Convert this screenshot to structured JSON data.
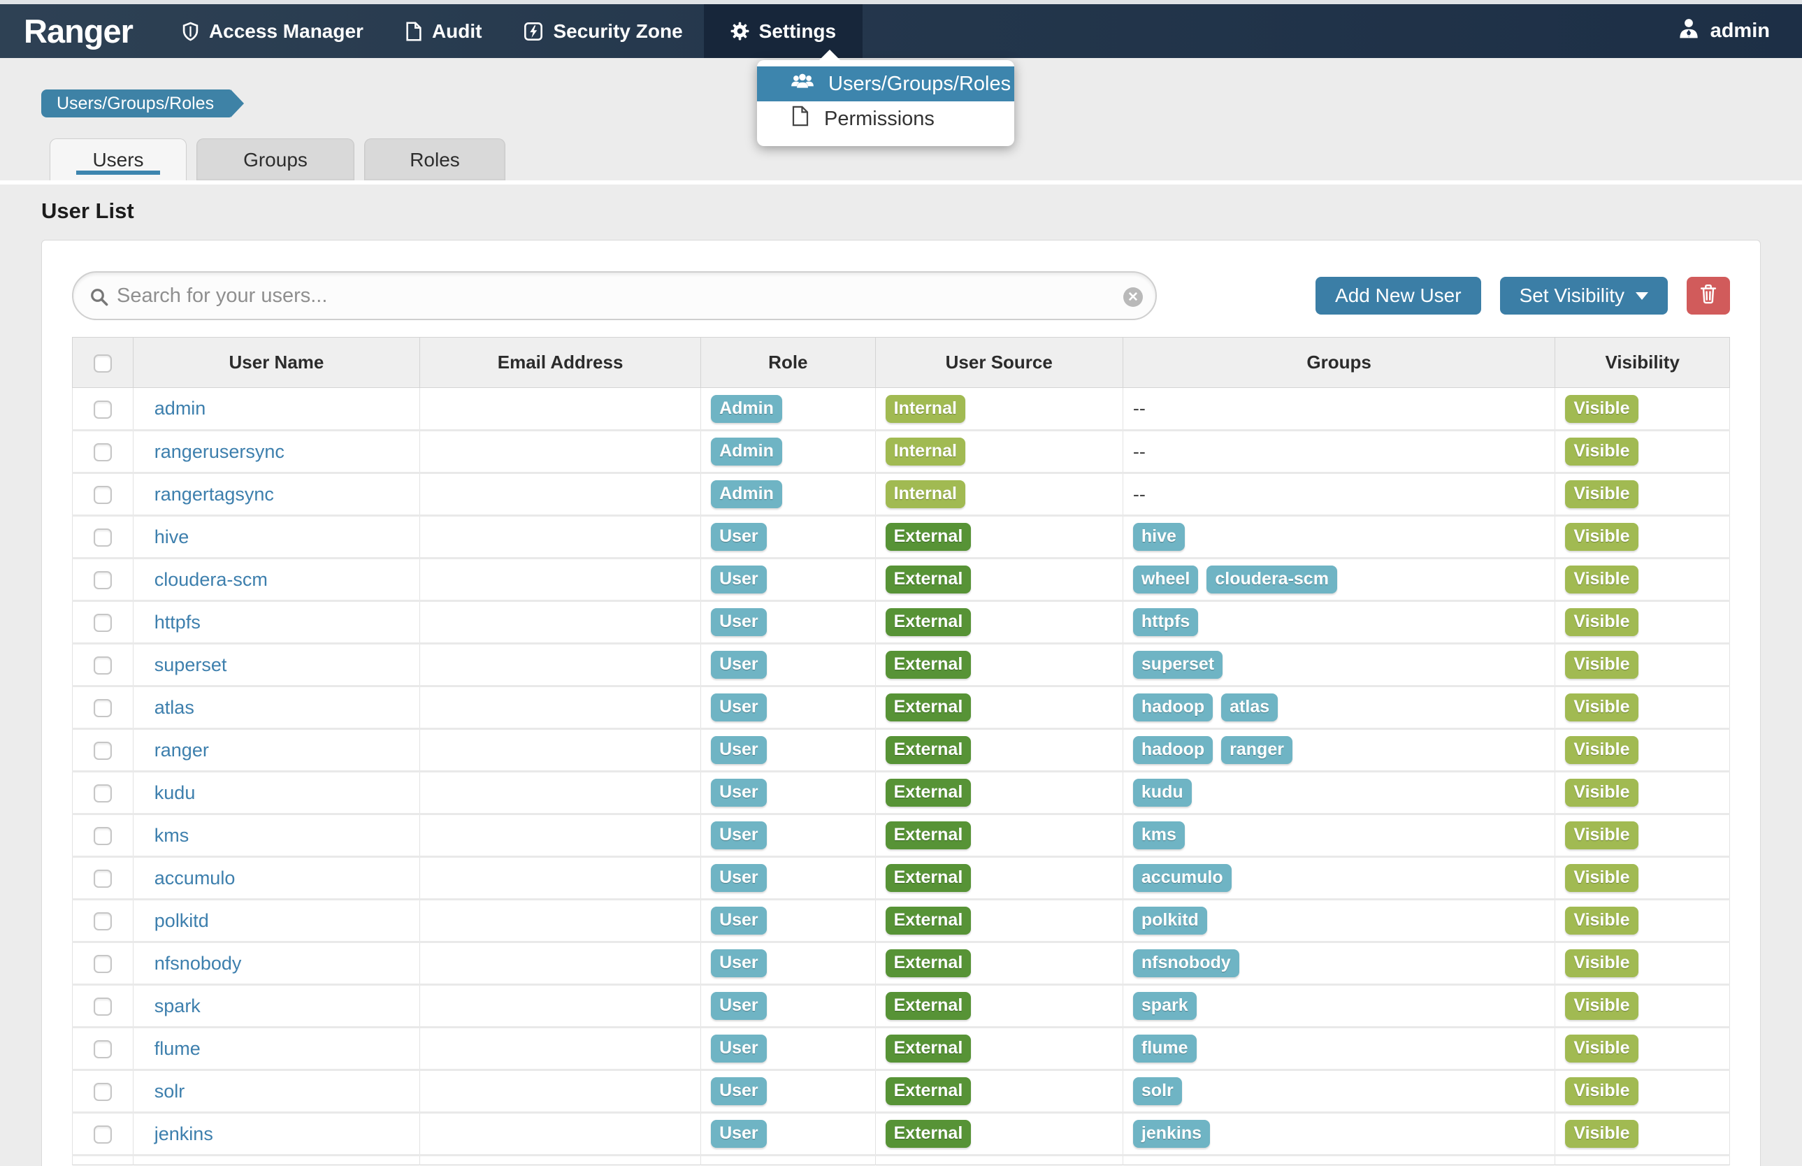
{
  "navbar": {
    "brand": "Ranger",
    "items": [
      {
        "label": "Access Manager",
        "icon": "shield-icon"
      },
      {
        "label": "Audit",
        "icon": "file-icon"
      },
      {
        "label": "Security Zone",
        "icon": "bolt-icon"
      },
      {
        "label": "Settings",
        "icon": "gear-icon"
      }
    ],
    "user": "admin"
  },
  "settings_dropdown": {
    "items": [
      {
        "label": "Users/Groups/Roles",
        "icon": "users-icon",
        "selected": true
      },
      {
        "label": "Permissions",
        "icon": "file-icon",
        "selected": false
      }
    ]
  },
  "breadcrumb": "Users/Groups/Roles",
  "tabs": [
    {
      "label": "Users",
      "active": true
    },
    {
      "label": "Groups",
      "active": false
    },
    {
      "label": "Roles",
      "active": false
    }
  ],
  "page_title": "User List",
  "toolbar": {
    "search_placeholder": "Search for your users...",
    "add_button": "Add New User",
    "visibility_button": "Set Visibility"
  },
  "table": {
    "headers": [
      "User Name",
      "Email Address",
      "Role",
      "User Source",
      "Groups",
      "Visibility"
    ],
    "empty_groups": "--",
    "rows": [
      {
        "user": "admin",
        "email": "",
        "role": "Admin",
        "source": "Internal",
        "groups": [],
        "visibility": "Visible"
      },
      {
        "user": "rangerusersync",
        "email": "",
        "role": "Admin",
        "source": "Internal",
        "groups": [],
        "visibility": "Visible"
      },
      {
        "user": "rangertagsync",
        "email": "",
        "role": "Admin",
        "source": "Internal",
        "groups": [],
        "visibility": "Visible"
      },
      {
        "user": "hive",
        "email": "",
        "role": "User",
        "source": "External",
        "groups": [
          "hive"
        ],
        "visibility": "Visible"
      },
      {
        "user": "cloudera-scm",
        "email": "",
        "role": "User",
        "source": "External",
        "groups": [
          "wheel",
          "cloudera-scm"
        ],
        "visibility": "Visible"
      },
      {
        "user": "httpfs",
        "email": "",
        "role": "User",
        "source": "External",
        "groups": [
          "httpfs"
        ],
        "visibility": "Visible"
      },
      {
        "user": "superset",
        "email": "",
        "role": "User",
        "source": "External",
        "groups": [
          "superset"
        ],
        "visibility": "Visible"
      },
      {
        "user": "atlas",
        "email": "",
        "role": "User",
        "source": "External",
        "groups": [
          "hadoop",
          "atlas"
        ],
        "visibility": "Visible"
      },
      {
        "user": "ranger",
        "email": "",
        "role": "User",
        "source": "External",
        "groups": [
          "hadoop",
          "ranger"
        ],
        "visibility": "Visible"
      },
      {
        "user": "kudu",
        "email": "",
        "role": "User",
        "source": "External",
        "groups": [
          "kudu"
        ],
        "visibility": "Visible"
      },
      {
        "user": "kms",
        "email": "",
        "role": "User",
        "source": "External",
        "groups": [
          "kms"
        ],
        "visibility": "Visible"
      },
      {
        "user": "accumulo",
        "email": "",
        "role": "User",
        "source": "External",
        "groups": [
          "accumulo"
        ],
        "visibility": "Visible"
      },
      {
        "user": "polkitd",
        "email": "",
        "role": "User",
        "source": "External",
        "groups": [
          "polkitd"
        ],
        "visibility": "Visible"
      },
      {
        "user": "nfsnobody",
        "email": "",
        "role": "User",
        "source": "External",
        "groups": [
          "nfsnobody"
        ],
        "visibility": "Visible"
      },
      {
        "user": "spark",
        "email": "",
        "role": "User",
        "source": "External",
        "groups": [
          "spark"
        ],
        "visibility": "Visible"
      },
      {
        "user": "flume",
        "email": "",
        "role": "User",
        "source": "External",
        "groups": [
          "flume"
        ],
        "visibility": "Visible"
      },
      {
        "user": "solr",
        "email": "",
        "role": "User",
        "source": "External",
        "groups": [
          "solr"
        ],
        "visibility": "Visible"
      },
      {
        "user": "jenkins",
        "email": "",
        "role": "User",
        "source": "External",
        "groups": [
          "jenkins"
        ],
        "visibility": "Visible"
      }
    ]
  },
  "colors": {
    "navbar_dark": "#1d2f46",
    "accent_blue": "#3d85ad",
    "button_blue": "#3b7ea6",
    "danger_red": "#d15b5b",
    "badge_teal": "#6fb4c4",
    "badge_olive": "#a1ba52",
    "badge_green": "#579336",
    "link_blue": "#3d7fad"
  }
}
